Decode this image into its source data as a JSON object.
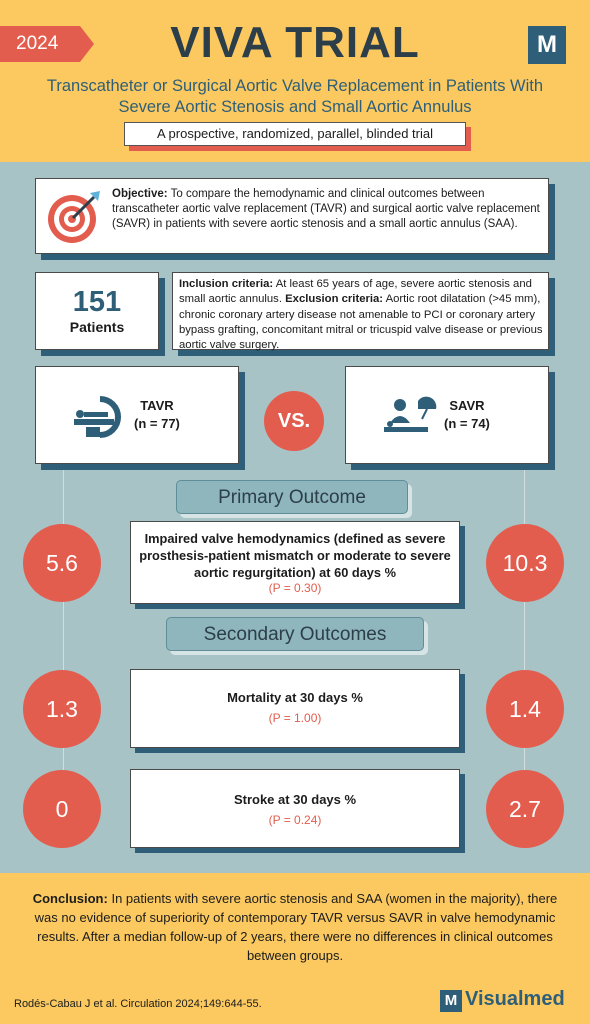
{
  "header": {
    "year": "2024",
    "title": "VIVA TRIAL",
    "logo_letter": "M",
    "subtitle": "Transcatheter or Surgical Aortic Valve Replacement in Patients With Severe Aortic Stenosis and Small Aortic Annulus",
    "design": "A prospective, randomized, parallel, blinded trial"
  },
  "objective": {
    "label": "Objective:",
    "text": "To compare the hemodynamic and clinical outcomes between transcatheter aortic valve replacement (TAVR) and surgical aortic valve replacement (SAVR) in patients with severe aortic stenosis and a small aortic annulus (SAA)."
  },
  "patients": {
    "count": "151",
    "label": "Patients"
  },
  "criteria": {
    "inclusion_label": "Inclusion criteria:",
    "inclusion_text": "At least 65 years of age, severe aortic stenosis and small aortic annulus.",
    "exclusion_label": "Exclusion criteria:",
    "exclusion_text": "Aortic root dilatation (>45 mm), chronic coronary artery disease not amenable to PCI or coronary artery bypass grafting, concomitant mitral or tricuspid valve disease or previous aortic valve surgery."
  },
  "arms": {
    "tavr": {
      "name": "TAVR",
      "n": "(n = 77)"
    },
    "vs": "VS.",
    "savr": {
      "name": "SAVR",
      "n": "(n = 74)"
    }
  },
  "primary": {
    "section_title": "Primary Outcome",
    "label": "Impaired valve hemodynamics (defined as severe prosthesis-patient mismatch or moderate to severe aortic regurgitation) at 60 days %",
    "p": "(P = 0.30)",
    "tavr_value": "5.6",
    "savr_value": "10.3"
  },
  "secondary": {
    "section_title": "Secondary Outcomes",
    "items": [
      {
        "label": "Mortality at 30 days %",
        "p": "(P = 1.00)",
        "tavr_value": "1.3",
        "savr_value": "1.4"
      },
      {
        "label": "Stroke at 30 days %",
        "p": "(P = 0.24)",
        "tavr_value": "0",
        "savr_value": "2.7"
      }
    ]
  },
  "conclusion": {
    "label": "Conclusion:",
    "text": "In patients with severe aortic stenosis and SAA (women in the majority), there was no evidence of superiority of contemporary TAVR versus SAVR in valve hemodynamic results. After a median follow-up of 2 years, there were no differences in clinical outcomes between groups."
  },
  "footer": {
    "citation": "Rodés-Cabau J et al. Circulation 2024;149:644-55.",
    "brand_letter": "M",
    "brand_name": "Visualmed"
  },
  "colors": {
    "accent": "#e35d4e",
    "yellow": "#fbc95f",
    "navy": "#2f5f78",
    "background": "#a7c3c6"
  }
}
